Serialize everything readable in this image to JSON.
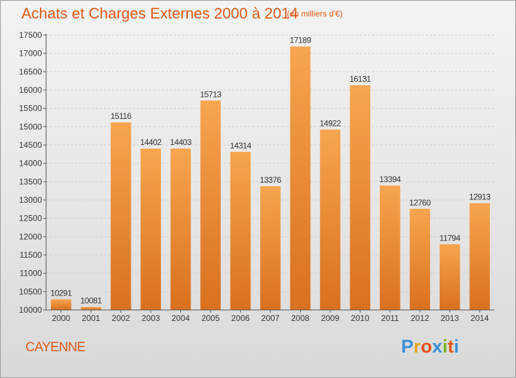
{
  "title": "Achats et Charges Externes 2000 à 2014",
  "unit_note": "(en milliers d'€)",
  "place": "CAYENNE",
  "logo": {
    "text": "Proxiti",
    "colors": [
      "#3a8fd6",
      "#e8a21a",
      "#e8501a",
      "#3a8fd6",
      "#7ab51d",
      "#e05a1a",
      "#3a8fd6"
    ]
  },
  "colors": {
    "accent": "#e05a1a",
    "bar_light": "#f7a54f",
    "bar_dark": "#d9701e",
    "axis": "#555555",
    "grid": "#cfcfcf"
  },
  "chart_data": {
    "type": "bar",
    "categories": [
      "2000",
      "2001",
      "2002",
      "2003",
      "2004",
      "2005",
      "2006",
      "2007",
      "2008",
      "2009",
      "2010",
      "2011",
      "2012",
      "2013",
      "2014"
    ],
    "values": [
      10291,
      10081,
      15116,
      14402,
      14403,
      15713,
      14314,
      13376,
      17189,
      14922,
      16131,
      13394,
      12760,
      11794,
      12913
    ],
    "title": "Achats et Charges Externes 2000 à 2014",
    "xlabel": "",
    "ylabel": "",
    "ylim": [
      10000,
      17500
    ],
    "yticks": [
      10000,
      10500,
      11000,
      11500,
      12000,
      12500,
      13000,
      13500,
      14000,
      14500,
      15000,
      15500,
      16000,
      16500,
      17000,
      17500
    ],
    "grid": true,
    "data_labels": true
  }
}
